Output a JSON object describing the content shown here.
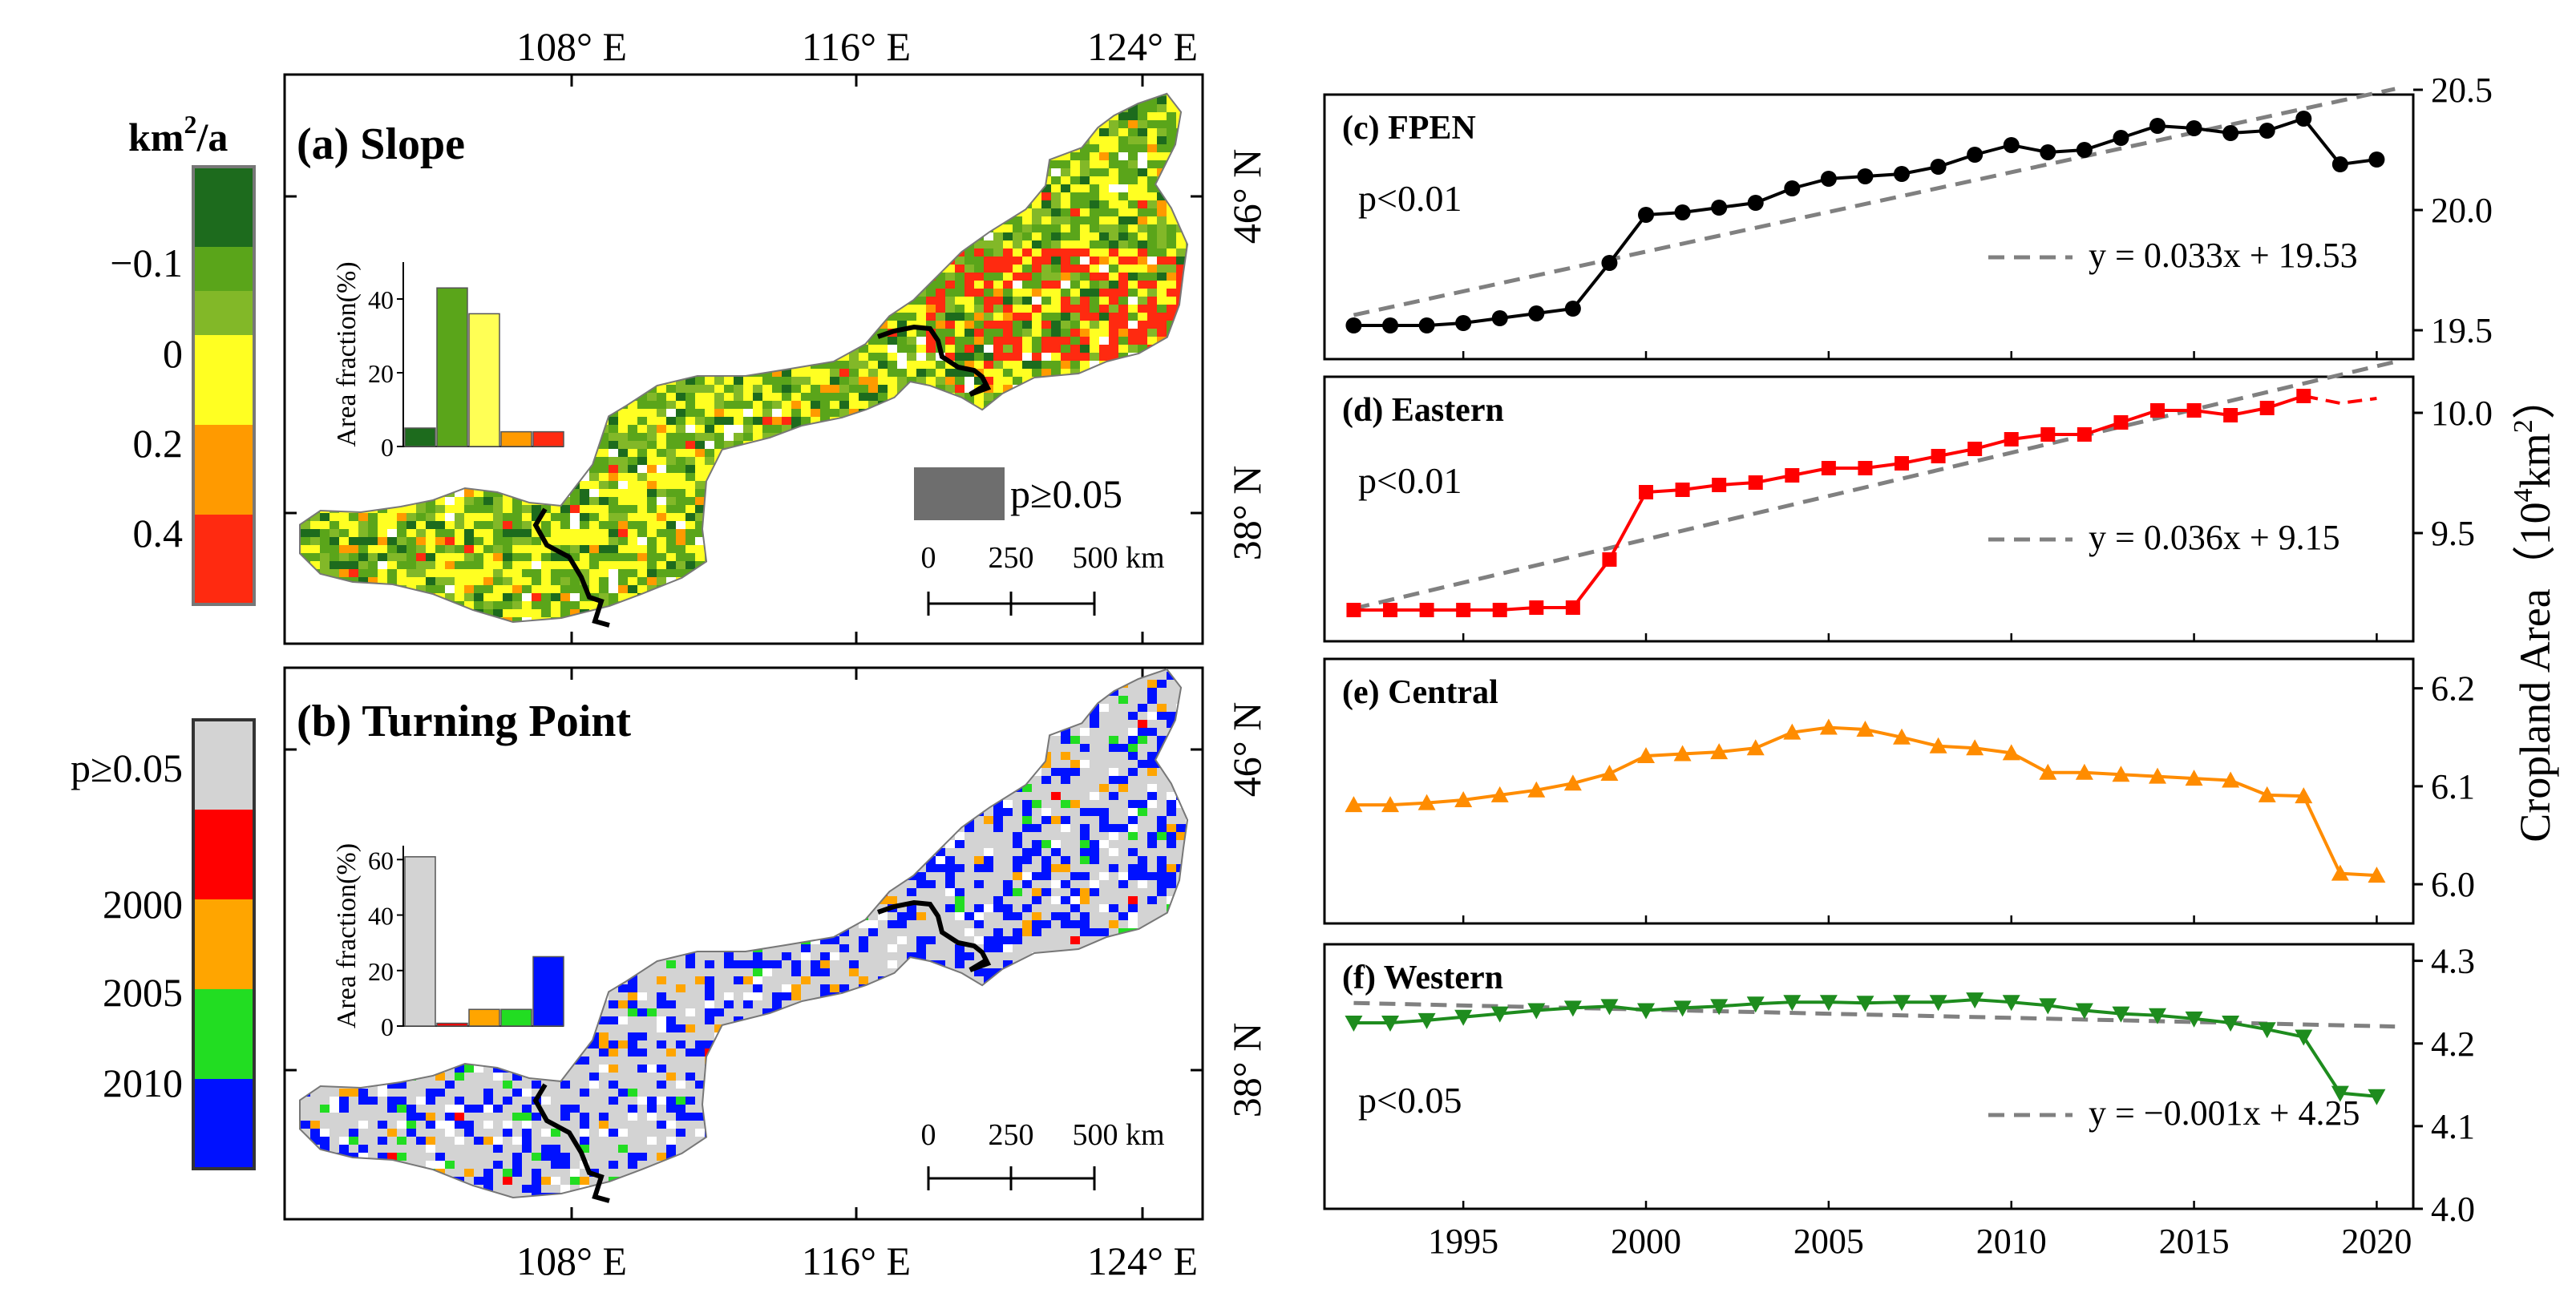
{
  "maps": {
    "top_lon_labels": [
      "108° E",
      "116° E",
      "124° E"
    ],
    "bottom_lon_labels": [
      "108° E",
      "116° E",
      "124° E"
    ],
    "lat_labels": [
      "46° N",
      "38° N"
    ],
    "scale_bar": {
      "zero": "0",
      "mid": "250",
      "end": "500 km"
    },
    "slope": {
      "title": "(a) Slope",
      "legend_title_main": "km",
      "legend_title_sup": "2",
      "legend_title_tail": "/a",
      "legend_ticks": [
        "−0.1",
        "0",
        "0.2",
        "0.4"
      ],
      "legend_colors": [
        "#1d6b1d",
        "#5aa51a",
        "#82b828",
        "#ffff22",
        "#ff9a00",
        "#ff2a10"
      ],
      "nonsig_label": "p≥0.05",
      "nonsig_color": "#6e6e6e",
      "inset": {
        "ylabel": "Area fraction(%)",
        "yticks": [
          "0",
          "20",
          "40"
        ],
        "ymax": 50,
        "values": [
          5,
          43,
          36,
          4,
          4
        ],
        "colors": [
          "#1d6b1d",
          "#5aa51a",
          "#ffff55",
          "#ff9a00",
          "#ff2a10"
        ]
      }
    },
    "turning": {
      "title": "(b) Turning Point",
      "legend_ticks": [
        "p≥0.05",
        "2000",
        "2005",
        "2010"
      ],
      "legend_colors": [
        "#d3d3d3",
        "#ff0000",
        "#ffa500",
        "#22dd22",
        "#0011ff"
      ],
      "inset": {
        "ylabel": "Area fraction(%)",
        "yticks": [
          "0",
          "20",
          "40",
          "60"
        ],
        "ymax": 65,
        "values": [
          61,
          1,
          6,
          6,
          25
        ],
        "colors": [
          "#d3d3d3",
          "#ff0000",
          "#ffa500",
          "#22dd22",
          "#0011ff"
        ]
      }
    }
  },
  "chart_data": [
    {
      "type": "line",
      "title": "(c) FPEN",
      "x": [
        1992,
        1993,
        1994,
        1995,
        1996,
        1997,
        1998,
        1999,
        2000,
        2001,
        2002,
        2003,
        2004,
        2005,
        2006,
        2007,
        2008,
        2009,
        2010,
        2011,
        2012,
        2013,
        2014,
        2015,
        2016,
        2017,
        2018,
        2019,
        2020
      ],
      "series": [
        {
          "name": "FPEN",
          "color": "#000000",
          "marker": "circle",
          "values": [
            19.52,
            19.52,
            19.52,
            19.53,
            19.55,
            19.57,
            19.59,
            19.78,
            19.98,
            19.99,
            20.01,
            20.03,
            20.09,
            20.13,
            20.14,
            20.15,
            20.18,
            20.23,
            20.27,
            20.24,
            20.25,
            20.3,
            20.35,
            20.34,
            20.32,
            20.33,
            20.38,
            20.19,
            20.21
          ]
        }
      ],
      "trend": {
        "slope": 0.033,
        "intercept": 19.53,
        "color": "#808080"
      },
      "equation": "y = 0.033x + 19.53",
      "pvalue": "p<0.01",
      "ylim": [
        19.38,
        20.48
      ],
      "yticks": [
        "19.5",
        "20.0",
        "20.5"
      ],
      "ytick_values": [
        19.5,
        20.0,
        20.5
      ]
    },
    {
      "type": "line",
      "title": "(d) Eastern",
      "x": [
        1992,
        1993,
        1994,
        1995,
        1996,
        1997,
        1998,
        1999,
        2000,
        2001,
        2002,
        2003,
        2004,
        2005,
        2006,
        2007,
        2008,
        2009,
        2010,
        2011,
        2012,
        2013,
        2014,
        2015,
        2016,
        2017,
        2018,
        2019,
        2020
      ],
      "series": [
        {
          "name": "Eastern",
          "color": "#ff0000",
          "marker": "square",
          "values": [
            9.18,
            9.18,
            9.18,
            9.18,
            9.18,
            9.19,
            9.19,
            9.39,
            9.67,
            9.68,
            9.7,
            9.71,
            9.74,
            9.77,
            9.77,
            9.79,
            9.82,
            9.85,
            9.89,
            9.91,
            9.91,
            9.96,
            10.01,
            10.01,
            9.99,
            10.02,
            10.07,
            10.04,
            10.06
          ]
        }
      ],
      "trend": {
        "slope": 0.036,
        "intercept": 9.15,
        "color": "#808080"
      },
      "equation": "y = 0.036x + 9.15",
      "pvalue": "p<0.01",
      "ylim": [
        9.05,
        10.15
      ],
      "yticks": [
        "9.5",
        "10.0"
      ],
      "ytick_values": [
        9.5,
        10.0
      ]
    },
    {
      "type": "line",
      "title": "(e) Central",
      "x": [
        1992,
        1993,
        1994,
        1995,
        1996,
        1997,
        1998,
        1999,
        2000,
        2001,
        2002,
        2003,
        2004,
        2005,
        2006,
        2007,
        2008,
        2009,
        2010,
        2011,
        2012,
        2013,
        2014,
        2015,
        2016,
        2017,
        2018,
        2019,
        2020
      ],
      "series": [
        {
          "name": "Central",
          "color": "#ff8c00",
          "marker": "triangle-up",
          "values": [
            6.081,
            6.081,
            6.083,
            6.086,
            6.091,
            6.096,
            6.103,
            6.113,
            6.131,
            6.133,
            6.135,
            6.139,
            6.155,
            6.16,
            6.158,
            6.15,
            6.141,
            6.139,
            6.134,
            6.114,
            6.114,
            6.112,
            6.11,
            6.108,
            6.106,
            6.091,
            6.09,
            6.011,
            6.009
          ]
        }
      ],
      "title_only": true,
      "ylim": [
        5.96,
        6.23
      ],
      "yticks": [
        "6.0",
        "6.1",
        "6.2"
      ],
      "ytick_values": [
        6.0,
        6.1,
        6.2
      ]
    },
    {
      "type": "line",
      "title": "(f) Western",
      "x": [
        1992,
        1993,
        1994,
        1995,
        1996,
        1997,
        1998,
        1999,
        2000,
        2001,
        2002,
        2003,
        2004,
        2005,
        2006,
        2007,
        2008,
        2009,
        2010,
        2011,
        2012,
        2013,
        2014,
        2015,
        2016,
        2017,
        2018,
        2019,
        2020
      ],
      "series": [
        {
          "name": "Western",
          "color": "#1e8c1e",
          "marker": "triangle-down",
          "values": [
            4.225,
            4.225,
            4.228,
            4.232,
            4.236,
            4.24,
            4.243,
            4.245,
            4.24,
            4.243,
            4.245,
            4.248,
            4.25,
            4.25,
            4.249,
            4.25,
            4.25,
            4.253,
            4.25,
            4.246,
            4.24,
            4.236,
            4.234,
            4.23,
            4.225,
            4.217,
            4.208,
            4.14,
            4.136
          ]
        }
      ],
      "trend": {
        "slope": -0.001,
        "intercept": 4.25,
        "color": "#808080"
      },
      "equation": "y = −0.001x + 4.25",
      "pvalue": "p<0.05",
      "ylim": [
        4.0,
        4.32
      ],
      "yticks": [
        "4.0",
        "4.1",
        "4.2",
        "4.3"
      ],
      "ytick_values": [
        4.0,
        4.1,
        4.2,
        4.3
      ]
    }
  ],
  "shared_axes": {
    "xlabel_ticks": [
      "1995",
      "2000",
      "2005",
      "2010",
      "2015",
      "2020"
    ],
    "xtick_values": [
      1995,
      2000,
      2005,
      2010,
      2015,
      2020
    ],
    "xlim": [
      1991.2,
      2021.0
    ],
    "ylabel_main": "Cropland Area（",
    "ylabel_num": "10",
    "ylabel_sup1": "4",
    "ylabel_unit": "km",
    "ylabel_sup2": "2",
    "ylabel_close": "）"
  }
}
